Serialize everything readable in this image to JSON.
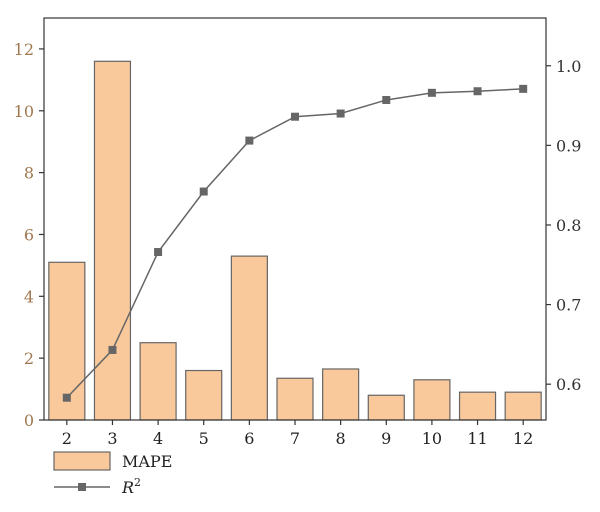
{
  "chart_data": {
    "type": "bar+line",
    "categories": [
      "2",
      "3",
      "4",
      "5",
      "6",
      "7",
      "8",
      "9",
      "10",
      "11",
      "12"
    ],
    "series": [
      {
        "name": "MAPE",
        "type": "bar",
        "axis": "left",
        "values": [
          5.1,
          11.6,
          2.5,
          1.6,
          5.3,
          1.35,
          1.65,
          0.8,
          1.3,
          0.9,
          0.9
        ],
        "color": "#F9C89B",
        "stroke": "#666666"
      },
      {
        "name": "R",
        "name_superscript": "2",
        "type": "line",
        "axis": "right",
        "values": [
          0.583,
          0.643,
          0.766,
          0.842,
          0.906,
          0.936,
          0.94,
          0.957,
          0.966,
          0.968,
          0.971
        ],
        "color": "#666666",
        "marker": "square"
      }
    ],
    "y_left": {
      "lim": [
        0,
        13
      ],
      "ticks": [
        "0",
        "2",
        "4",
        "6",
        "8",
        "10",
        "12"
      ],
      "color": "#a07850"
    },
    "y_right": {
      "lim": [
        0.555,
        1.06
      ],
      "ticks": [
        "0.6",
        "0.7",
        "0.8",
        "0.9",
        "1.0"
      ]
    },
    "legend": {
      "placement": "bottom-left"
    },
    "grid": false
  }
}
